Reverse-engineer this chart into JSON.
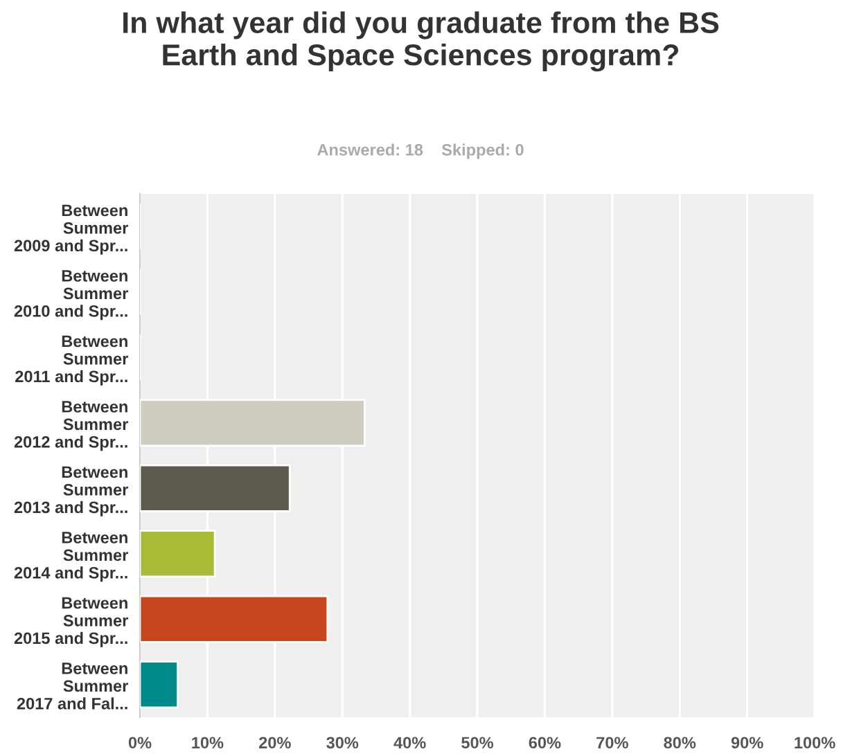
{
  "chart_data": {
    "type": "bar",
    "orientation": "horizontal",
    "title": "In what year did you graduate from the BS\nEarth and Space Sciences program?",
    "subtitle": "Answered: 18    Skipped: 0",
    "categories": [
      "Between\nSummer\n2009 and Spr...",
      "Between\nSummer\n2010 and Spr...",
      "Between\nSummer\n2011 and Spr...",
      "Between\nSummer\n2012 and Spr...",
      "Between\nSummer\n2013 and Spr...",
      "Between\nSummer\n2014 and Spr...",
      "Between\nSummer\n2015 and Spr...",
      "Between\nSummer\n2017 and Fal..."
    ],
    "values": [
      0,
      0,
      0,
      33.3,
      22.2,
      11.1,
      27.8,
      5.6
    ],
    "colors": [
      null,
      null,
      null,
      "#cfcdc0",
      "#5c5a4c",
      "#a8bc38",
      "#c8461e",
      "#008b8b"
    ],
    "xlim": [
      0,
      100
    ],
    "xticks": [
      {
        "value": 0,
        "label": "0%"
      },
      {
        "value": 10,
        "label": "10%"
      },
      {
        "value": 20,
        "label": "20%"
      },
      {
        "value": 30,
        "label": "30%"
      },
      {
        "value": 40,
        "label": "40%"
      },
      {
        "value": 50,
        "label": "50%"
      },
      {
        "value": 60,
        "label": "60%"
      },
      {
        "value": 70,
        "label": "70%"
      },
      {
        "value": 80,
        "label": "80%"
      },
      {
        "value": 90,
        "label": "90%"
      },
      {
        "value": 100,
        "label": "100%"
      }
    ],
    "grid": "x",
    "legend": false
  }
}
